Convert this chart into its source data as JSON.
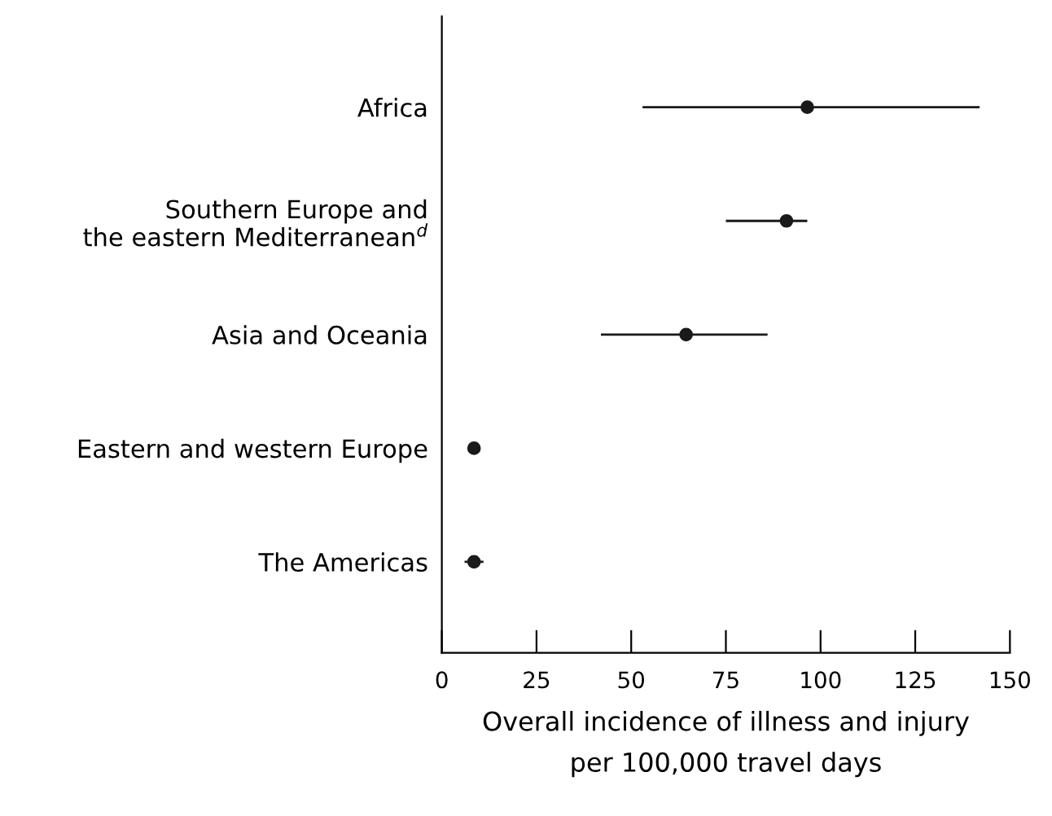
{
  "chart_data": {
    "type": "scatter",
    "orientation": "horizontal",
    "categories": [
      "Africa",
      "Southern Europe and\nthe eastern Mediterranean$^{d}$",
      "Asia and Oceania",
      "Eastern and western Europe",
      "The Americas"
    ],
    "values": [
      96.5,
      91,
      64.5,
      8.5,
      8.5
    ],
    "errors": [
      [
        53,
        142
      ],
      [
        75,
        96.5
      ],
      [
        42,
        86
      ],
      null,
      [
        6,
        11
      ]
    ],
    "color": "#1a1a1a",
    "marker": "circle",
    "xlabel": "Overall incidence of illness and injury\nper 100,000 travel days",
    "xlim": [
      0,
      150
    ],
    "xticks": [
      0,
      25,
      50,
      75,
      100,
      125,
      150
    ],
    "grid": false
  }
}
